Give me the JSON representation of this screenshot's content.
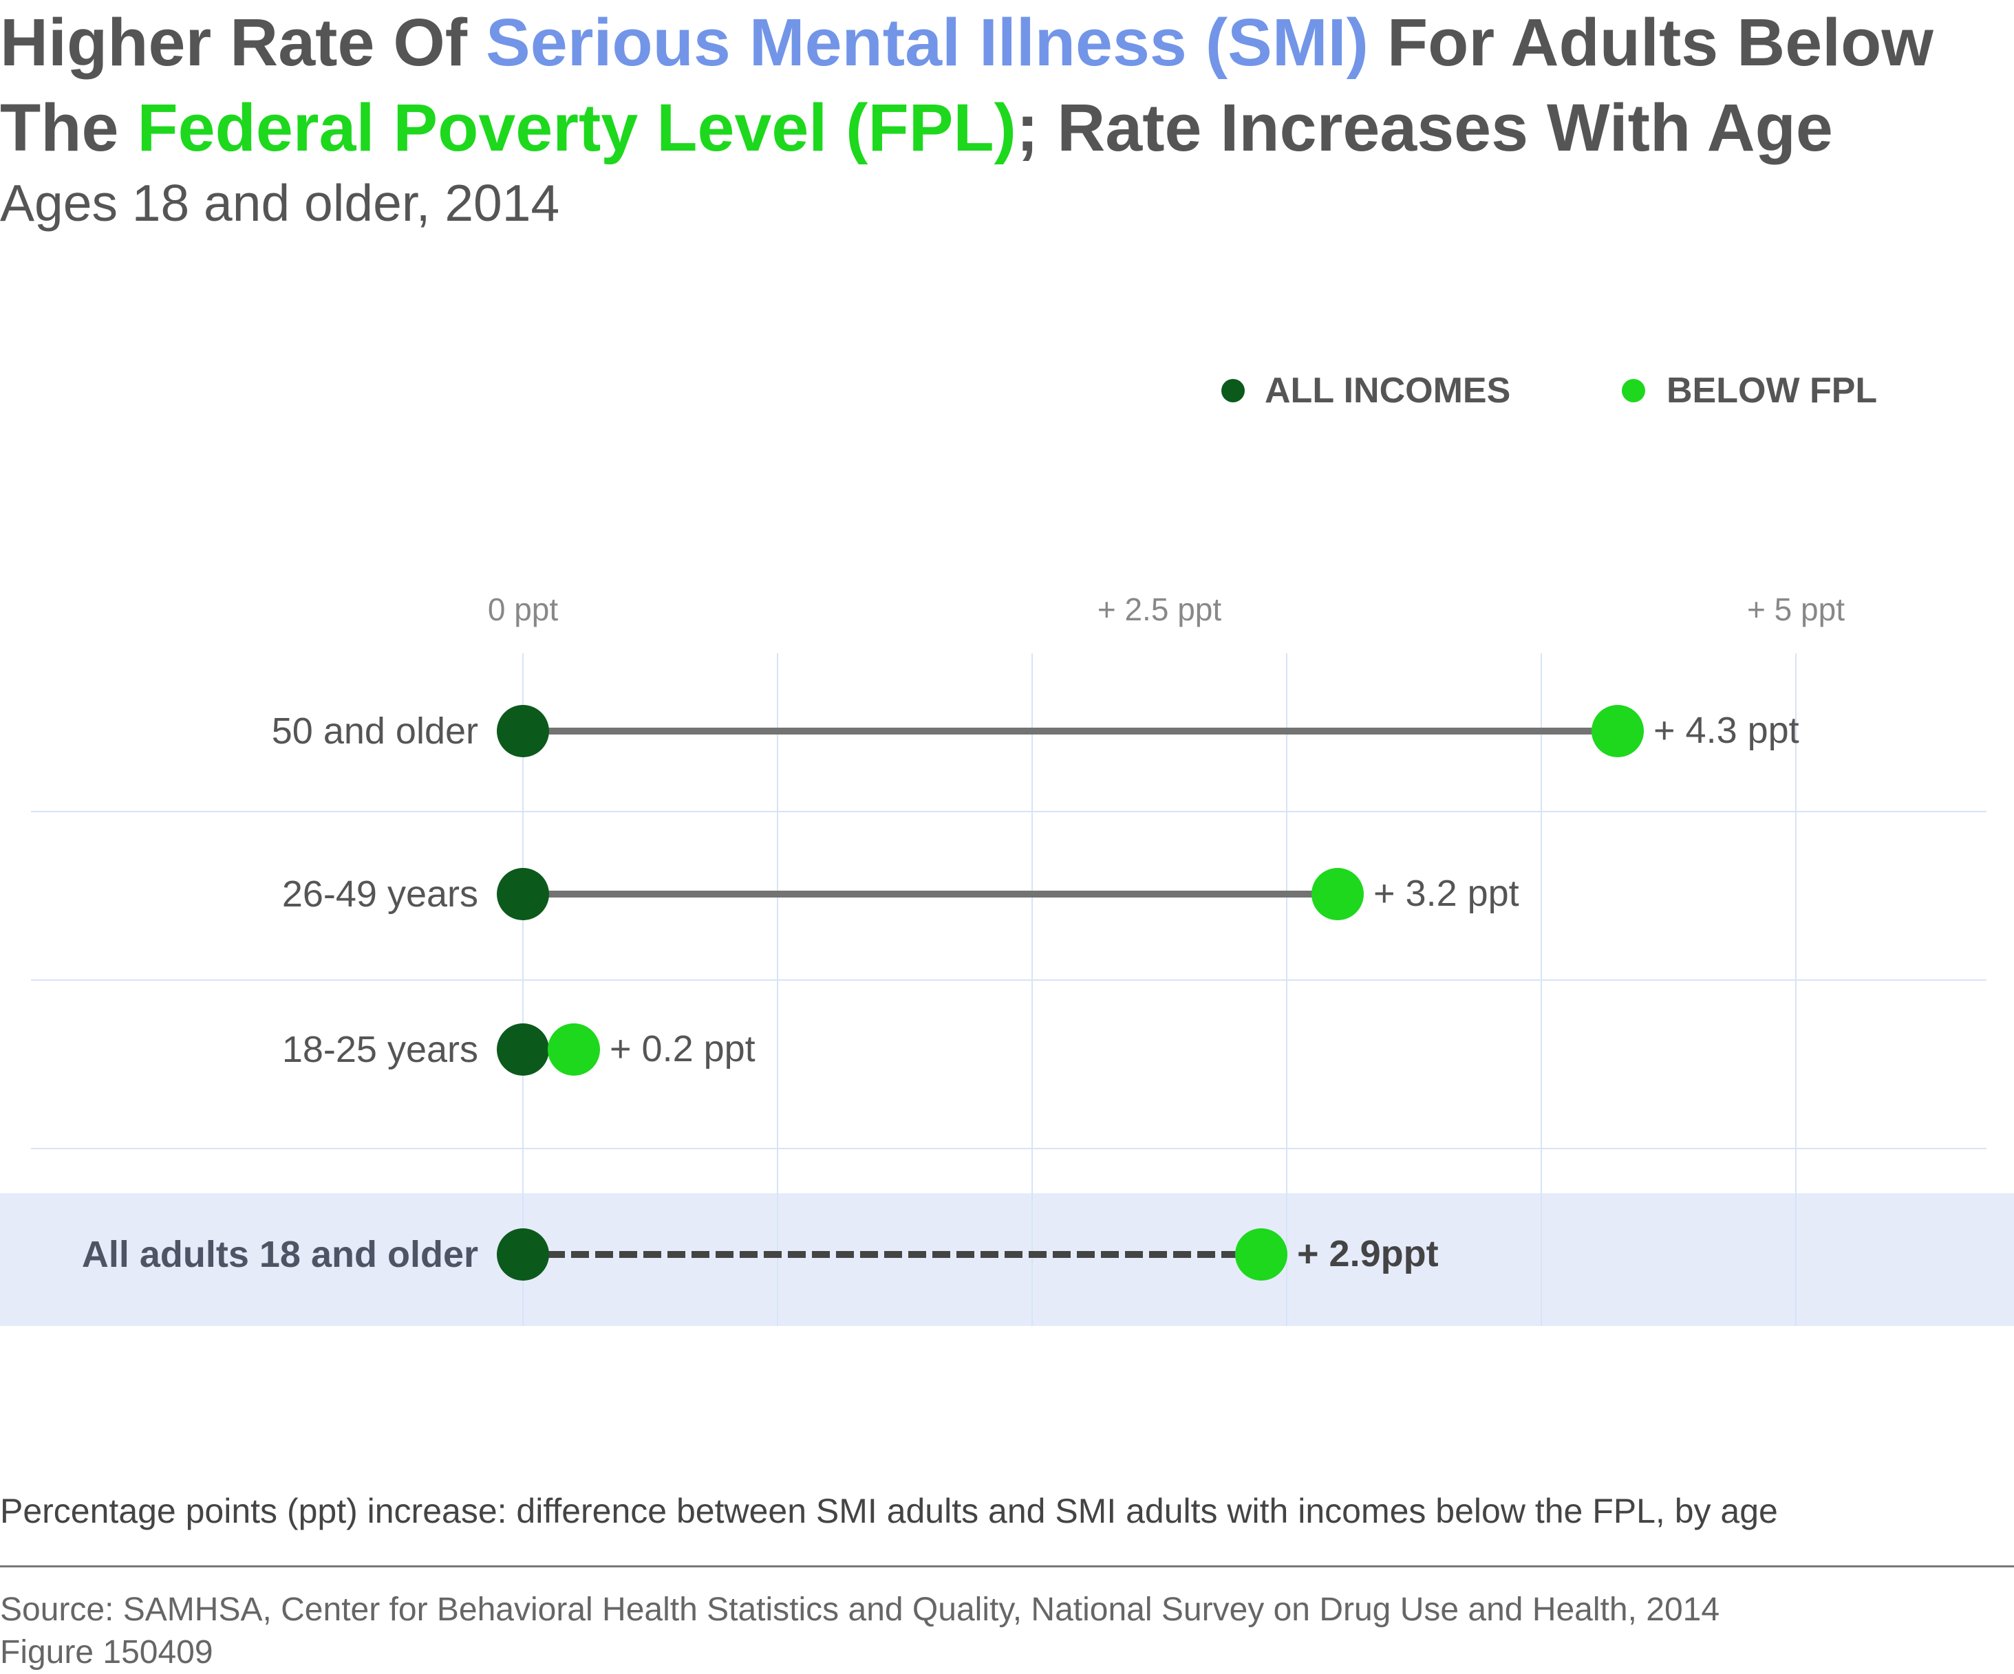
{
  "title": {
    "part1": "Higher Rate Of ",
    "part2": "Serious Mental Illness (SMI)",
    "part3": " For Adults Below",
    "part4": "The ",
    "part5": "Federal Poverty Level (FPL)",
    "part6": "; Rate Increases With Age"
  },
  "subtitle": "Ages 18 and older, 2014",
  "legend": [
    {
      "label": "ALL INCOMES",
      "color": "#0b5a1c"
    },
    {
      "label": "BELOW FPL",
      "color": "#1dd81d"
    }
  ],
  "colors": {
    "title_blue": "#7295e8",
    "title_green": "#1dd81d",
    "all_incomes": "#0b5a1c",
    "below_fpl": "#1dd81d",
    "connector": "#737373",
    "grid": "#d6e4f7",
    "total_band": "#e6ebfa"
  },
  "chart_data": {
    "type": "dumbbell",
    "xlim": [
      0,
      5
    ],
    "ticks": [
      {
        "value": 0,
        "label": "0 ppt"
      },
      {
        "value": 2.5,
        "label": "+ 2.5 ppt"
      },
      {
        "value": 5,
        "label": "+ 5 ppt"
      }
    ],
    "rows": [
      {
        "label": "50 and older",
        "start": 0,
        "end": 4.3,
        "value_label": "+ 4.3 ppt",
        "emphasis": false
      },
      {
        "label": "26-49 years",
        "start": 0,
        "end": 3.2,
        "value_label": "+ 3.2 ppt",
        "emphasis": false
      },
      {
        "label": "18-25 years",
        "start": 0,
        "end": 0.2,
        "value_label": "+ 0.2 ppt",
        "emphasis": false
      },
      {
        "label": "All adults 18 and older",
        "start": 0,
        "end": 2.9,
        "value_label": "+ 2.9ppt",
        "emphasis": true
      }
    ],
    "grid": true,
    "legend_position": "top-right"
  },
  "footnote": "Percentage points (ppt) increase: difference between SMI adults and SMI adults with incomes below the FPL, by age",
  "source": {
    "line1": "Source: SAMHSA, Center for Behavioral Health Statistics and Quality, National Survey on Drug Use and Health, 2014",
    "line2": "Figure 150409"
  }
}
